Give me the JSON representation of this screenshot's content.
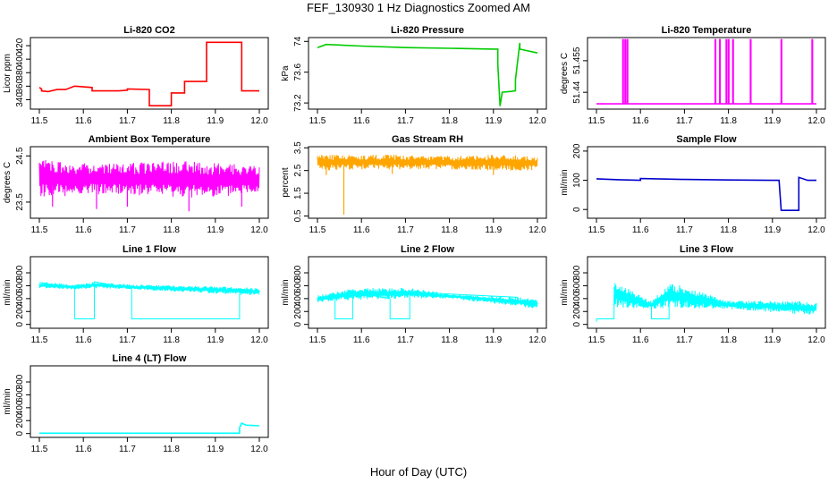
{
  "figure": {
    "title": "FEF_130930  1 Hz Diagnostics Zoomed AM",
    "xlabel": "Hour of Day (UTC)"
  },
  "chart_data": [
    {
      "type": "line",
      "title": "Li-820 CO2",
      "ylabel": "Licor ppm",
      "color": "#ff0000",
      "xlim": [
        11.5,
        12.0
      ],
      "ylim": [
        326,
        432
      ],
      "yticks": [
        340,
        360,
        380,
        400,
        420
      ],
      "xticks": [
        11.5,
        11.6,
        11.7,
        11.8,
        11.9,
        12.0
      ],
      "x": [
        11.5,
        11.505,
        11.505,
        11.52,
        11.54,
        11.56,
        11.58,
        11.58,
        11.62,
        11.62,
        11.68,
        11.7,
        11.7,
        11.75,
        11.75,
        11.8,
        11.8,
        11.83,
        11.83,
        11.88,
        11.88,
        11.96,
        11.96,
        12.0
      ],
      "y": [
        358,
        356,
        353,
        352,
        355,
        355,
        360,
        360,
        358,
        353,
        353,
        354,
        356,
        355,
        331,
        331,
        350,
        350,
        367,
        367,
        425,
        425,
        353,
        353
      ]
    },
    {
      "type": "line",
      "title": "Li-820 Pressure",
      "ylabel": "kPa",
      "color": "#00cc00",
      "xlim": [
        11.5,
        12.0
      ],
      "ylim": [
        73.12,
        74.05
      ],
      "yticks": [
        73.2,
        73.6,
        74.0
      ],
      "xticks": [
        11.5,
        11.6,
        11.7,
        11.8,
        11.9,
        12.0
      ],
      "x": [
        11.5,
        11.52,
        11.6,
        11.7,
        11.8,
        11.9,
        11.91,
        11.91,
        11.915,
        11.92,
        11.94,
        11.95,
        11.95,
        11.96,
        11.96,
        12.0
      ],
      "y": [
        73.92,
        73.96,
        73.94,
        73.92,
        73.91,
        73.9,
        73.9,
        73.7,
        73.16,
        73.34,
        73.35,
        73.36,
        73.5,
        73.98,
        73.9,
        73.85
      ]
    },
    {
      "type": "line",
      "title": "Li-820 Temperature",
      "ylabel": "degrees C",
      "color": "#ff00ff",
      "xlim": [
        11.5,
        12.0
      ],
      "ylim": [
        51.432,
        51.466
      ],
      "yticks": [
        51.44,
        51.455
      ],
      "xticks": [
        11.5,
        11.6,
        11.7,
        11.8,
        11.9,
        12.0
      ],
      "x": [
        11.5,
        11.56,
        11.56,
        11.561,
        11.561,
        11.565,
        11.565,
        11.566,
        11.566,
        11.57,
        11.57,
        11.571,
        11.571,
        11.77,
        11.77,
        11.771,
        11.771,
        11.78,
        11.78,
        11.781,
        11.781,
        11.795,
        11.795,
        11.796,
        11.796,
        11.8,
        11.8,
        11.801,
        11.801,
        11.81,
        11.81,
        11.811,
        11.811,
        11.85,
        11.85,
        11.851,
        11.851,
        11.92,
        11.92,
        11.921,
        11.921,
        11.99,
        11.99,
        11.991,
        11.991,
        12.0
      ],
      "y": [
        51.4345,
        51.4345,
        51.465,
        51.465,
        51.4345,
        51.4345,
        51.465,
        51.465,
        51.4345,
        51.4345,
        51.465,
        51.465,
        51.4345,
        51.4345,
        51.465,
        51.465,
        51.4345,
        51.4345,
        51.465,
        51.465,
        51.4345,
        51.4345,
        51.465,
        51.465,
        51.4345,
        51.4345,
        51.465,
        51.465,
        51.4345,
        51.4345,
        51.465,
        51.465,
        51.4345,
        51.4345,
        51.465,
        51.465,
        51.4345,
        51.4345,
        51.465,
        51.465,
        51.4345,
        51.4345,
        51.465,
        51.465,
        51.4345,
        51.4345
      ]
    },
    {
      "type": "line",
      "title": "Ambient Box Temperature",
      "ylabel": "degrees C",
      "color": "#ff00ff",
      "xlim": [
        11.5,
        12.0
      ],
      "ylim": [
        23.15,
        24.7
      ],
      "yticks": [
        23.5,
        24.5
      ],
      "xticks": [
        11.5,
        11.6,
        11.7,
        11.8,
        11.9,
        12.0
      ],
      "x": [
        11.5,
        12.0
      ],
      "y": [
        24.0,
        24.0
      ],
      "band": {
        "x": [
          11.5,
          11.6,
          11.7,
          11.8,
          11.9,
          12.0
        ],
        "low": [
          23.6,
          23.65,
          23.65,
          23.6,
          23.6,
          23.7
        ],
        "high": [
          24.45,
          24.35,
          24.35,
          24.4,
          24.35,
          24.3
        ]
      },
      "spikes": [
        [
          11.53,
          23.4
        ],
        [
          11.63,
          23.35
        ],
        [
          11.7,
          23.4
        ],
        [
          11.84,
          23.3
        ],
        [
          11.96,
          23.4
        ]
      ]
    },
    {
      "type": "line",
      "title": "Gas Stream RH",
      "ylabel": "percent",
      "color": "#ffa500",
      "xlim": [
        11.5,
        12.0
      ],
      "ylim": [
        0.4,
        3.55
      ],
      "yticks": [
        0.5,
        1.5,
        2.5,
        3.5
      ],
      "xticks": [
        11.5,
        11.6,
        11.7,
        11.8,
        11.9,
        12.0
      ],
      "x": [
        11.5,
        12.0
      ],
      "y": [
        2.8,
        2.8
      ],
      "band": {
        "x": [
          11.5,
          11.6,
          11.7,
          11.8,
          11.9,
          12.0
        ],
        "low": [
          2.5,
          2.55,
          2.55,
          2.55,
          2.5,
          2.5
        ],
        "high": [
          3.2,
          3.2,
          3.2,
          3.15,
          3.2,
          3.15
        ]
      },
      "spikes": [
        [
          11.56,
          0.55
        ],
        [
          11.52,
          2.3
        ],
        [
          11.67,
          2.35
        ],
        [
          11.9,
          2.3
        ]
      ]
    },
    {
      "type": "line",
      "title": "Sample Flow",
      "ylabel": "ml/min",
      "color": "#0000cc",
      "xlim": [
        11.5,
        12.0
      ],
      "ylim": [
        -30,
        215
      ],
      "yticks": [
        0,
        100,
        200
      ],
      "xticks": [
        11.5,
        11.6,
        11.7,
        11.8,
        11.9,
        12.0
      ],
      "x": [
        11.5,
        11.55,
        11.6,
        11.6,
        11.7,
        11.8,
        11.9,
        11.915,
        11.92,
        11.96,
        11.96,
        11.98,
        12.0
      ],
      "y": [
        105,
        102,
        100,
        106,
        103,
        101,
        100,
        100,
        -3,
        -3,
        110,
        100,
        100
      ]
    },
    {
      "type": "line",
      "title": "Line 1 Flow",
      "ylabel": "ml/min",
      "color": "#00ffff",
      "xlim": [
        11.5,
        12.0
      ],
      "ylim": [
        -60,
        1050
      ],
      "yticks": [
        0,
        200,
        400,
        600,
        800
      ],
      "xticks": [
        11.5,
        11.6,
        11.7,
        11.8,
        11.9,
        12.0
      ],
      "x": [
        11.5,
        11.58,
        11.58,
        11.625,
        11.625,
        11.71,
        11.71,
        11.955,
        11.955,
        12.0
      ],
      "y": [
        650,
        560,
        85,
        85,
        660,
        560,
        85,
        85,
        550,
        500
      ],
      "band": {
        "x": [
          11.5,
          11.58,
          11.625,
          11.71,
          11.955,
          12.0
        ],
        "low": [
          560,
          540,
          560,
          540,
          460,
          450
        ],
        "high": [
          660,
          620,
          660,
          620,
          580,
          560
        ]
      }
    },
    {
      "type": "line",
      "title": "Line 2 Flow",
      "ylabel": "ml/min",
      "color": "#00ffff",
      "xlim": [
        11.5,
        12.0
      ],
      "ylim": [
        -60,
        1050
      ],
      "yticks": [
        0,
        200,
        400,
        600,
        800
      ],
      "xticks": [
        11.5,
        11.6,
        11.7,
        11.8,
        11.9,
        12.0
      ],
      "x": [
        11.5,
        11.54,
        11.54,
        11.58,
        11.58,
        11.665,
        11.665,
        11.71,
        11.71,
        11.955,
        11.955,
        12.0
      ],
      "y": [
        400,
        400,
        85,
        85,
        500,
        400,
        85,
        85,
        500,
        420,
        340,
        320
      ],
      "band": {
        "x": [
          11.5,
          11.58,
          11.71,
          11.8,
          11.955,
          12.0
        ],
        "low": [
          340,
          380,
          400,
          400,
          280,
          240
        ],
        "high": [
          450,
          560,
          570,
          470,
          420,
          400
        ]
      }
    },
    {
      "type": "line",
      "title": "Line 3 Flow",
      "ylabel": "ml/min",
      "color": "#00ffff",
      "xlim": [
        11.5,
        12.0
      ],
      "ylim": [
        -60,
        1050
      ],
      "yticks": [
        0,
        200,
        400,
        600,
        800
      ],
      "xticks": [
        11.5,
        11.6,
        11.7,
        11.8,
        11.9,
        12.0
      ],
      "x": [
        11.5,
        11.5,
        11.54,
        11.54,
        11.625,
        11.625,
        11.665,
        11.665,
        11.8,
        11.955,
        11.955,
        12.0
      ],
      "y": [
        40,
        85,
        85,
        450,
        310,
        85,
        85,
        450,
        300,
        300,
        250,
        260
      ],
      "band": {
        "x": [
          11.54,
          11.625,
          11.665,
          11.8,
          11.955,
          12.0
        ],
        "low": [
          260,
          240,
          250,
          240,
          160,
          150
        ],
        "high": [
          680,
          360,
          660,
          370,
          360,
          340
        ]
      }
    },
    {
      "type": "line",
      "title": "Line 4 (LT) Flow",
      "ylabel": "ml/min",
      "color": "#00ffff",
      "xlim": [
        11.5,
        12.0
      ],
      "ylim": [
        -60,
        1050
      ],
      "yticks": [
        0,
        200,
        400,
        600,
        800
      ],
      "xticks": [
        11.5,
        11.6,
        11.7,
        11.8,
        11.9,
        12.0
      ],
      "x": [
        11.5,
        11.955,
        11.955,
        11.96,
        11.97,
        12.0
      ],
      "y": [
        5,
        5,
        90,
        160,
        130,
        120
      ]
    }
  ]
}
